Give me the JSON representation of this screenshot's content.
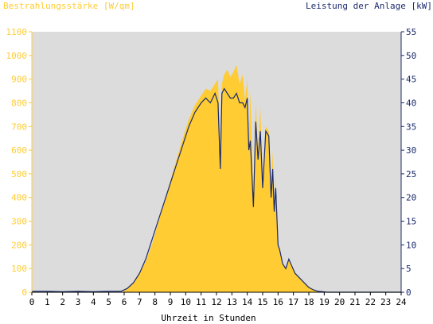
{
  "chart_data": {
    "type": "area",
    "title_left": "Bestrahlungsstärke [W/qm]",
    "title_right": "Leistung der Anlage [kW]",
    "xlabel": "Uhrzeit in Stunden",
    "x_ticks": [
      0,
      1,
      2,
      3,
      4,
      5,
      6,
      7,
      8,
      9,
      10,
      11,
      12,
      13,
      14,
      15,
      16,
      17,
      18,
      19,
      20,
      21,
      22,
      23,
      24
    ],
    "xlim": [
      0,
      24
    ],
    "y_left": {
      "ticks": [
        0,
        100,
        200,
        300,
        400,
        500,
        600,
        700,
        800,
        900,
        1000,
        1100
      ],
      "ylim": [
        0,
        1100
      ]
    },
    "y_right": {
      "ticks": [
        0,
        5,
        10,
        15,
        20,
        25,
        30,
        35,
        40,
        45,
        50,
        55
      ],
      "ylim": [
        0,
        55
      ]
    },
    "grid": false,
    "colors": {
      "background": "#dcdcdc",
      "irradiance": "#ffcc33",
      "power": "#1a2a6c",
      "left_axis_text": "#ffcc33",
      "right_axis_text": "#1a2a6c"
    },
    "series": [
      {
        "axis": "left",
        "style": "area",
        "x": [
          0,
          5.8,
          6.0,
          6.3,
          6.6,
          7.0,
          7.4,
          7.8,
          8.2,
          8.6,
          9.0,
          9.4,
          9.8,
          10.2,
          10.6,
          11.0,
          11.3,
          11.6,
          11.9,
          12.1,
          12.25,
          12.35,
          12.5,
          12.7,
          12.9,
          13.1,
          13.3,
          13.5,
          13.7,
          13.85,
          14.0,
          14.1,
          14.2,
          14.4,
          14.55,
          14.7,
          14.85,
          15.0,
          15.2,
          15.4,
          15.55,
          15.65,
          15.75,
          15.85,
          16.0,
          16.1,
          16.3,
          16.5,
          16.7,
          16.9,
          17.1,
          17.4,
          17.7,
          18.0,
          18.3,
          18.6,
          18.9,
          19.2,
          24
        ],
        "y": [
          0,
          0,
          5,
          20,
          40,
          80,
          130,
          200,
          290,
          380,
          470,
          560,
          650,
          730,
          790,
          830,
          860,
          850,
          880,
          900,
          600,
          880,
          920,
          940,
          910,
          930,
          960,
          880,
          920,
          810,
          900,
          620,
          850,
          400,
          800,
          600,
          780,
          450,
          700,
          680,
          420,
          600,
          350,
          480,
          200,
          180,
          120,
          100,
          140,
          110,
          80,
          60,
          40,
          25,
          10,
          5,
          2,
          0,
          0
        ]
      },
      {
        "axis": "right",
        "style": "line",
        "x": [
          0,
          1,
          2,
          3,
          4,
          5,
          5.8,
          6.2,
          6.6,
          7.0,
          7.4,
          7.8,
          8.2,
          8.6,
          9.0,
          9.4,
          9.8,
          10.2,
          10.6,
          11.0,
          11.3,
          11.6,
          11.9,
          12.1,
          12.25,
          12.35,
          12.5,
          12.7,
          12.9,
          13.1,
          13.3,
          13.5,
          13.7,
          13.85,
          14.0,
          14.1,
          14.2,
          14.4,
          14.55,
          14.7,
          14.85,
          15.0,
          15.2,
          15.4,
          15.55,
          15.65,
          15.75,
          15.85,
          16.0,
          16.1,
          16.3,
          16.5,
          16.7,
          16.9,
          17.1,
          17.4,
          17.7,
          18.0,
          18.3,
          18.6,
          18.9,
          19.2,
          24
        ],
        "y": [
          0.2,
          0.2,
          0.1,
          0.2,
          0.1,
          0.2,
          0.2,
          0.8,
          2,
          4,
          7,
          11,
          15,
          19,
          23,
          27,
          31,
          35,
          38,
          40,
          41,
          40,
          42,
          40,
          26,
          42,
          43,
          42,
          41,
          41,
          42,
          40,
          40,
          39,
          41,
          30,
          32,
          18,
          36,
          28,
          34,
          22,
          34,
          33,
          20,
          26,
          17,
          22,
          10,
          9,
          6,
          5,
          7,
          5.5,
          4,
          3,
          2,
          1,
          0.5,
          0.2,
          0.1,
          0,
          0
        ]
      }
    ]
  }
}
